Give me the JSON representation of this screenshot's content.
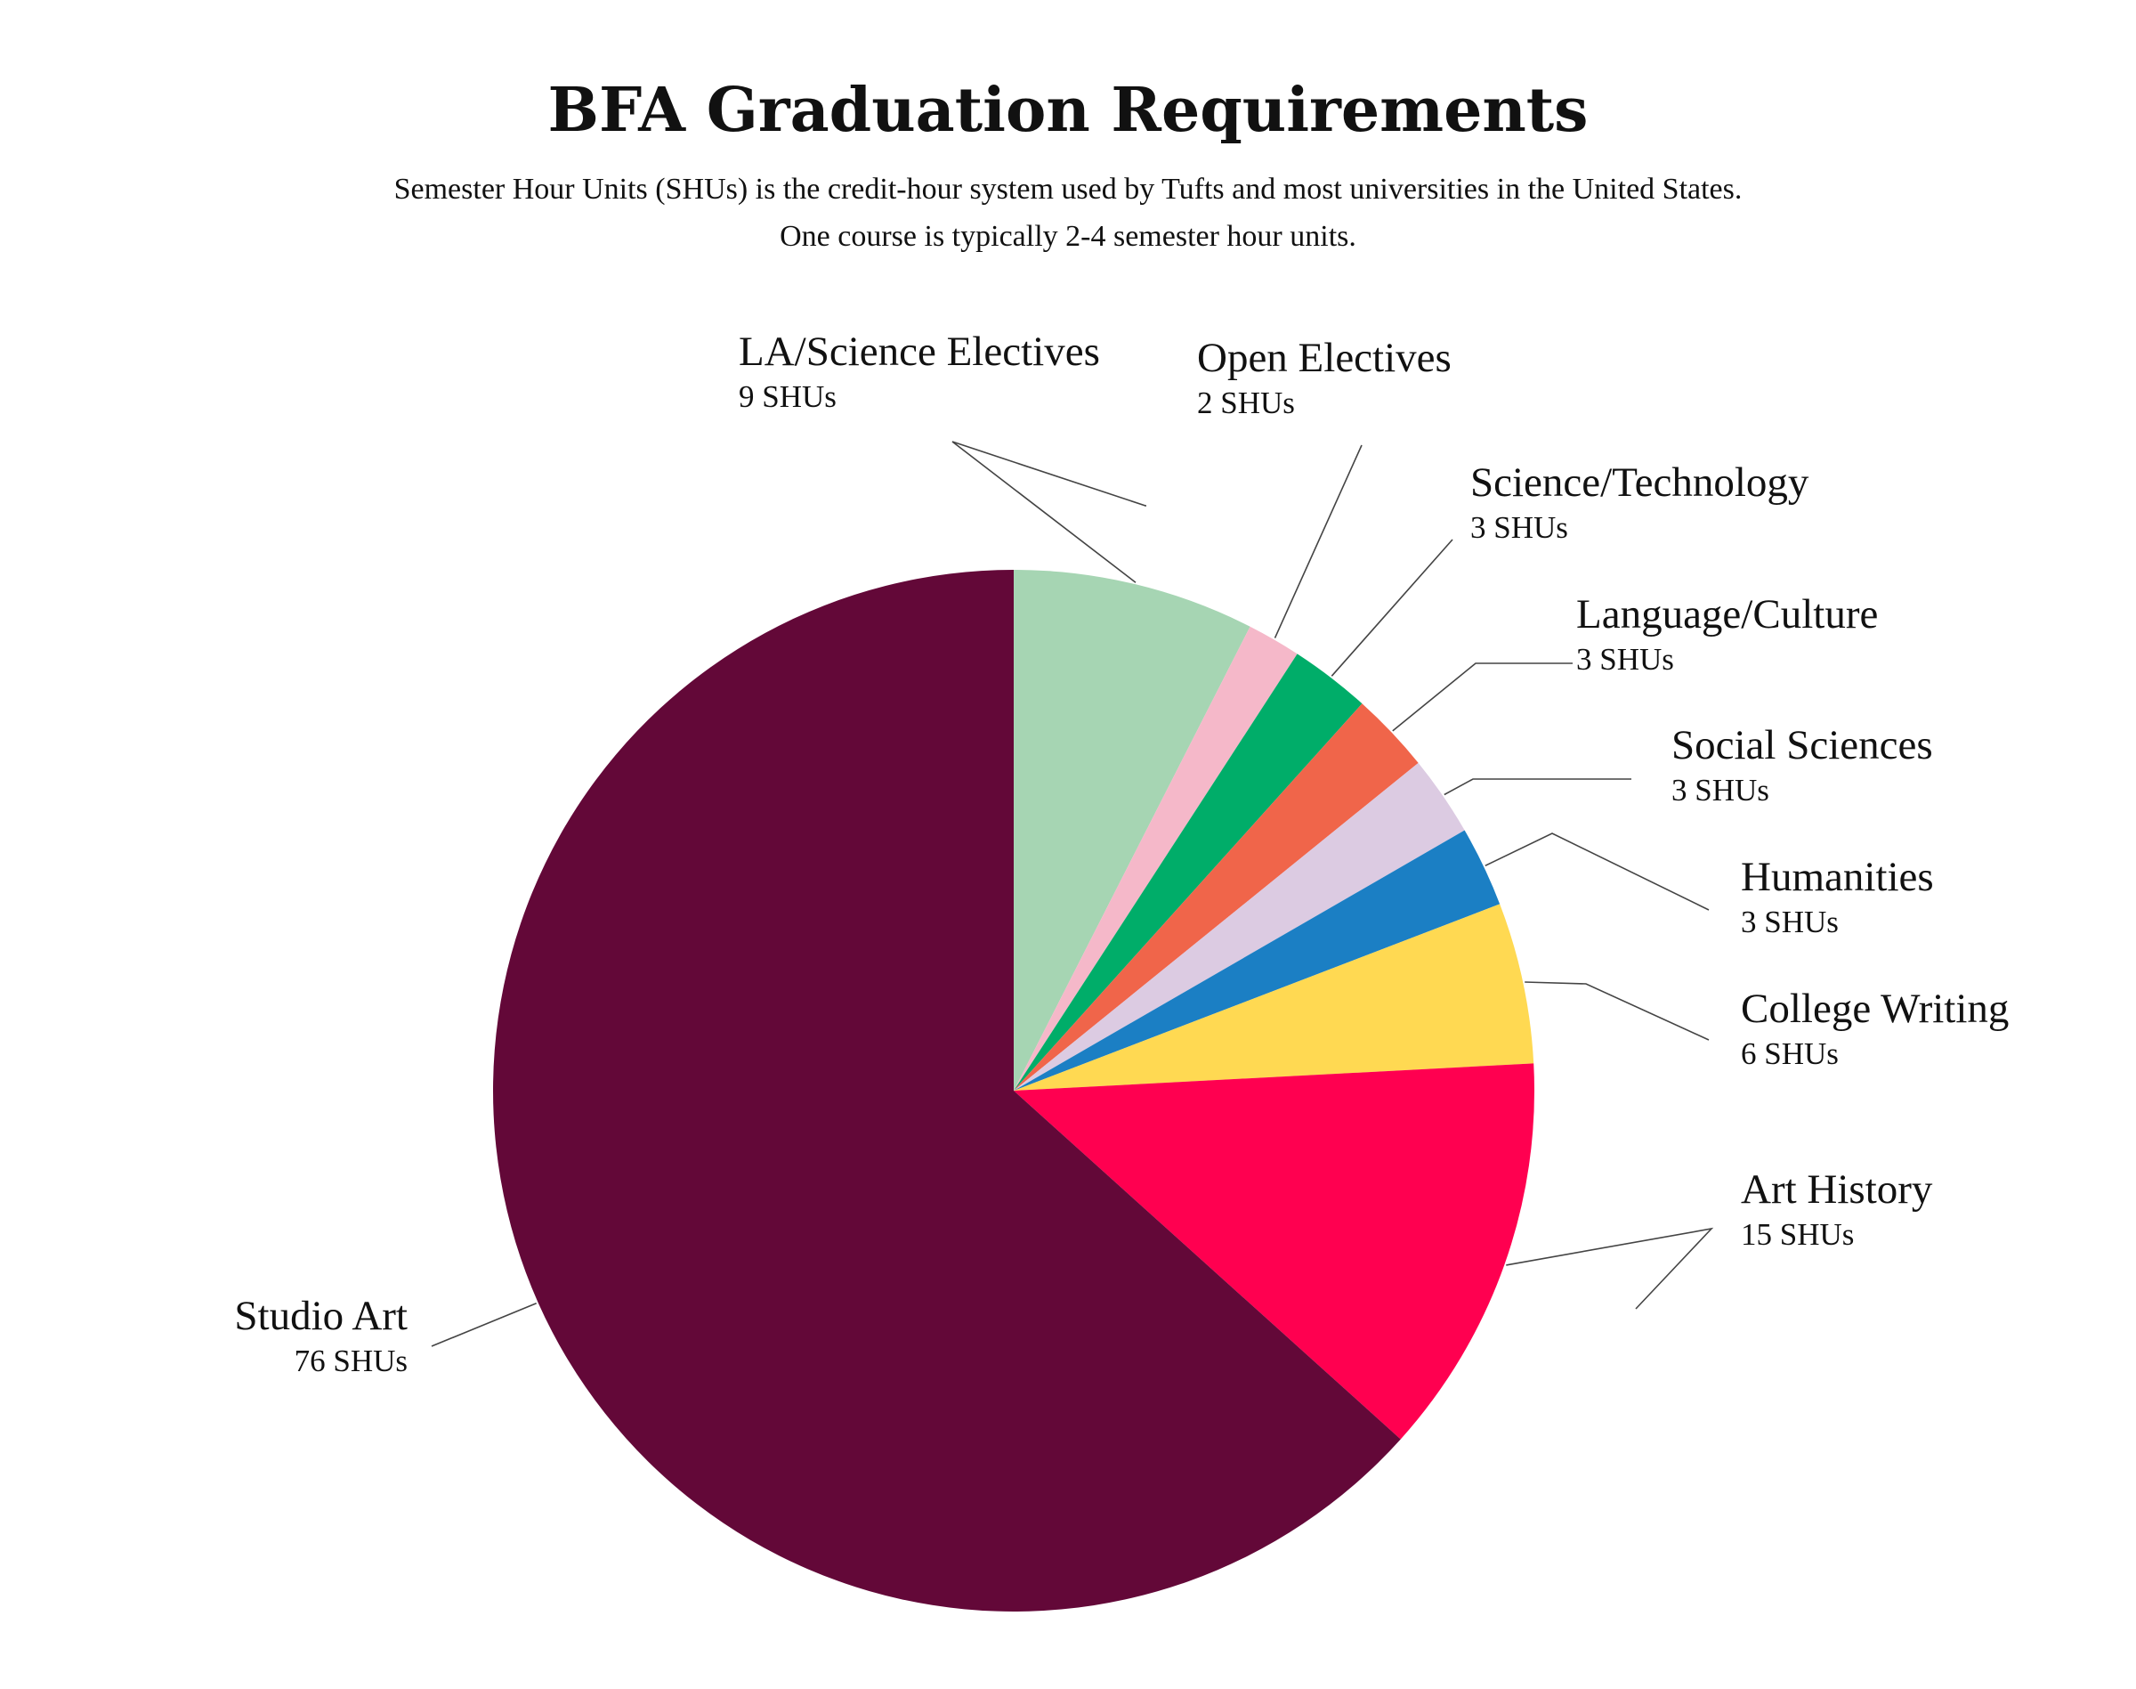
{
  "chart_data": {
    "type": "pie",
    "title": "BFA Graduation Requirements",
    "subtitle": [
      "Semester Hour Units (SHUs) is the credit-hour system used by Tufts and most universities in the United States.",
      "One course is typically 2-4 semester hour units."
    ],
    "unit": "SHUs",
    "start": "12 o'clock",
    "direction": "clockwise",
    "slices": [
      {
        "label": "LA/Science Electives",
        "value": 9,
        "value_label": "9 SHUs",
        "color": "#a6d5b3"
      },
      {
        "label": "Open Electives",
        "value": 2,
        "value_label": "2 SHUs",
        "color": "#f5b8c9"
      },
      {
        "label": "Science/Technology",
        "value": 3,
        "value_label": "3 SHUs",
        "color": "#00ad69"
      },
      {
        "label": "Language/Culture",
        "value": 3,
        "value_label": "3 SHUs",
        "color": "#f0654a"
      },
      {
        "label": "Social Sciences",
        "value": 3,
        "value_label": "3 SHUs",
        "color": "#dccbe2"
      },
      {
        "label": "Humanities",
        "value": 3,
        "value_label": "3 SHUs",
        "color": "#1b7fc4"
      },
      {
        "label": "College Writing",
        "value": 6,
        "value_label": "6 SHUs",
        "color": "#ffd952"
      },
      {
        "label": "Art History",
        "value": 15,
        "value_label": "15 SHUs",
        "color": "#ff0050"
      },
      {
        "label": "Studio Art",
        "value": 76,
        "value_label": "76 SHUs",
        "color": "#630838"
      }
    ]
  }
}
